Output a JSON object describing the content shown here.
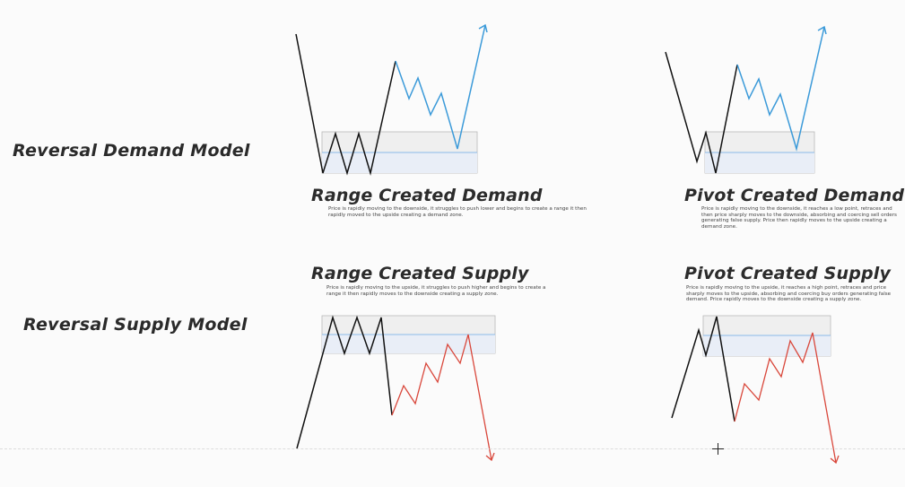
{
  "labels": {
    "reversal_demand": "Reversal Demand Model",
    "reversal_supply": "Reversal Supply Model"
  },
  "panels": {
    "range_demand": {
      "title": "Range Created Demand",
      "desc": "Price is rapidly moving to the downside, it struggles to push lower and begins to create a range it then rapidly moved to the upside creating a demand zone."
    },
    "pivot_demand": {
      "title": "Pivot Created Demand",
      "desc": "Price is rapidly moving to the downside, it reaches a low point, retraces and then price sharply moves to the downside, absorbing and coercing sell orders generating false supply. Price then rapidly moves to the upside creating a demand zone."
    },
    "range_supply": {
      "title": "Range Created Supply",
      "desc": "Price is rapidly moving to the upside, it struggles to push higher and begins to create a range it then rapidly moves to the downside creating a supply zone."
    },
    "pivot_supply": {
      "title": "Pivot Created Supply",
      "desc": "Price is rapidly moving to the upside, it reaches a high point, retraces and price sharply moves to the upside, absorbing and coercing buy orders generating false demand. Price rapidly moves to the downside creating a supply zone."
    }
  },
  "colors": {
    "demand_line": "#3b9ad9",
    "supply_line": "#d9473b",
    "price_line": "#111111",
    "zone_outer": "#eeeeee",
    "zone_inner": "#e8eef8",
    "zone_mid_line": "#7fb3e8"
  }
}
